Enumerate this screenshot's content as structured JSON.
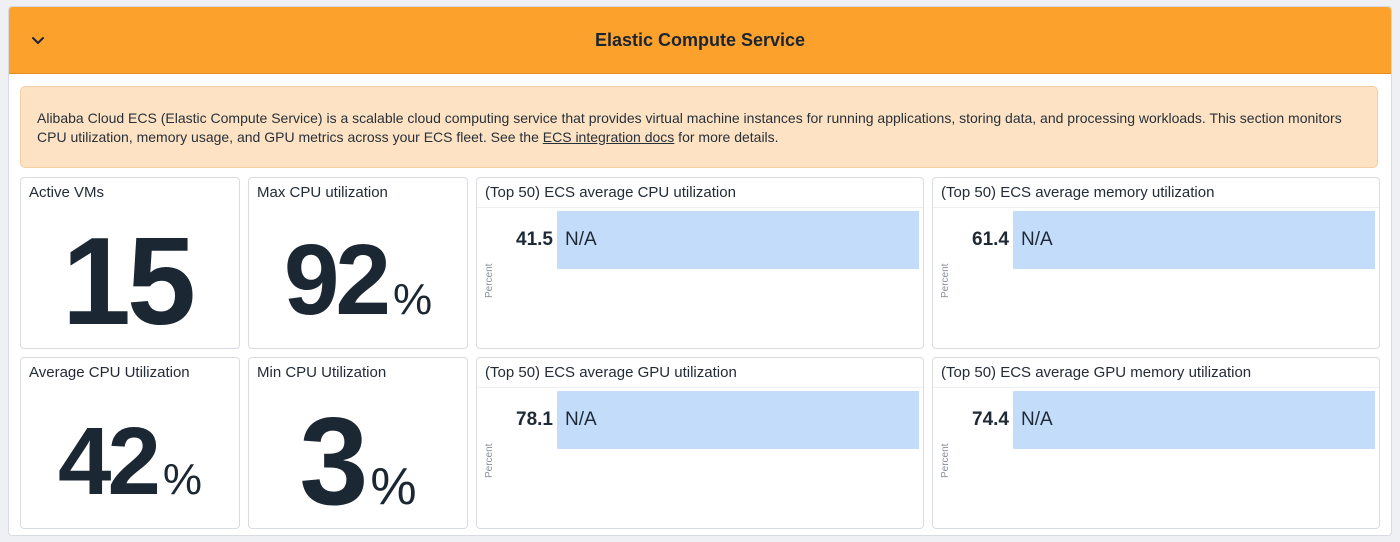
{
  "group": {
    "title": "Elastic Compute Service",
    "collapse_icon": "chevron-down-icon",
    "header_color": "#fca22c"
  },
  "note": {
    "text_before": "Alibaba Cloud ECS (Elastic Compute Service) is a scalable cloud computing service that provides virtual machine instances for running applications, storing data, and processing workloads. This section monitors CPU utilization, memory usage, and GPU metrics across your ECS fleet. See the ",
    "link_text": "ECS integration docs",
    "text_after": " for more details.",
    "background": "#fde3c4"
  },
  "query_values": {
    "active_vms": {
      "title": "Active VMs",
      "value": "15",
      "unit": ""
    },
    "max_cpu": {
      "title": "Max CPU utilization",
      "value": "92",
      "unit": "%"
    },
    "avg_cpu": {
      "title": "Average CPU Utilization",
      "value": "42",
      "unit": "%"
    },
    "min_cpu": {
      "title": "Min CPU Utilization",
      "value": "3",
      "unit": "%"
    }
  },
  "toplists": {
    "cpu": {
      "title": "(Top 50) ECS average CPU utilization",
      "value": "41.5",
      "label": "N/A",
      "axis": "Percent"
    },
    "memory": {
      "title": "(Top 50) ECS average memory utilization",
      "value": "61.4",
      "label": "N/A",
      "axis": "Percent"
    },
    "gpu": {
      "title": "(Top 50) ECS average GPU utilization",
      "value": "78.1",
      "label": "N/A",
      "axis": "Percent"
    },
    "gpu_memory": {
      "title": "(Top 50) ECS average GPU memory utilization",
      "value": "74.4",
      "label": "N/A",
      "axis": "Percent"
    }
  },
  "colors": {
    "bar": "#c2dcfa",
    "value_text": "#1b2732"
  }
}
